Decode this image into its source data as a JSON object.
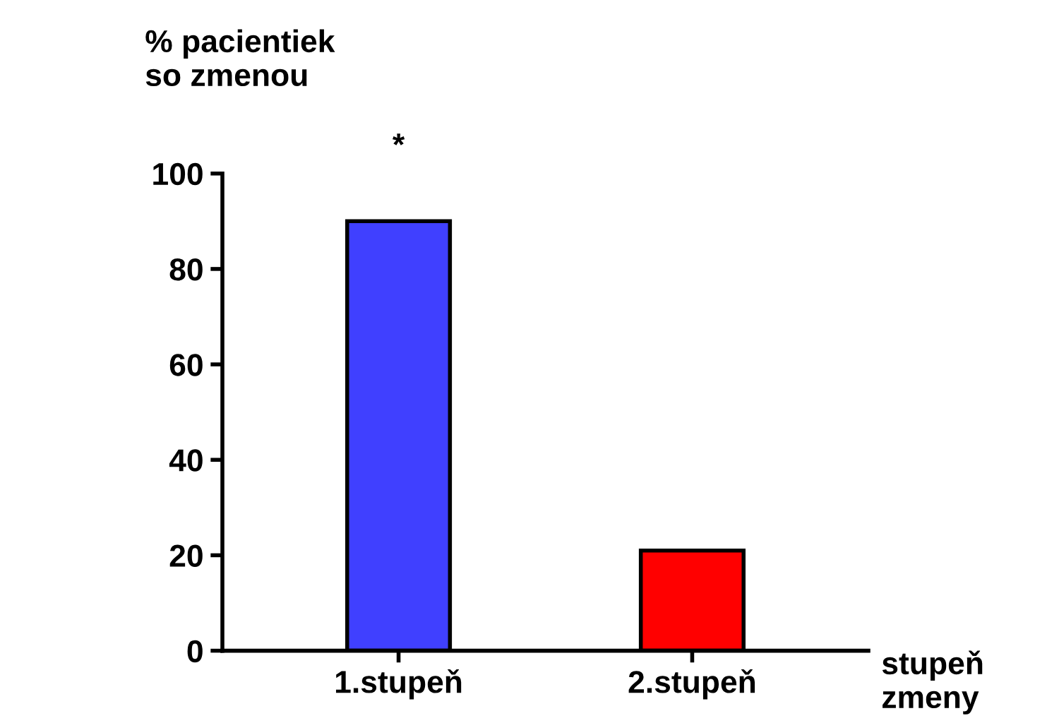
{
  "chart_data": {
    "type": "bar",
    "ylabel": "% pacientiek\nso zmenou",
    "xlabel": "stupeň\nzmeny",
    "categories": [
      "1.stupeň",
      "2.stupeň"
    ],
    "values": [
      90,
      21
    ],
    "colors": [
      "#4040ff",
      "#ff0000"
    ],
    "ylim": [
      0,
      100
    ],
    "yticks": [
      0,
      20,
      40,
      60,
      80,
      100
    ],
    "annotations": [
      "*"
    ],
    "grid": false,
    "legend": false
  }
}
